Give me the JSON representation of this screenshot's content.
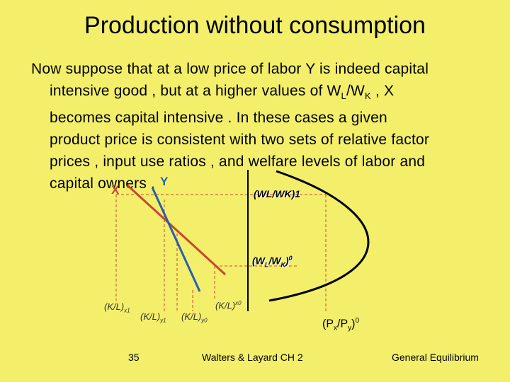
{
  "slide": {
    "title": "Production without consumption",
    "paragraph_lines": [
      "Now suppose that at a low price of labor Y is indeed capital",
      "intensive good , but at a higher values of W",
      "L",
      "/W",
      "K",
      " , X",
      "becomes capital intensive . In these cases a given",
      "product price is consistent with two sets of relative factor",
      "prices , input use ratios , and welfare levels of labor and",
      "capital owners ."
    ]
  },
  "diagram": {
    "label_y": "Y",
    "label_x": "X",
    "label_w1": "(WL/WK)1",
    "label_w0": {
      "open": "(W",
      "sub1": "L",
      "mid": "/W",
      "sub2": "K",
      "close": ")",
      "sup": "0"
    },
    "k_x1": {
      "base": "(K/L)",
      "sub": "x1"
    },
    "k_x0": {
      "base": "(K/L)",
      "sup": "x0"
    },
    "k_y1": {
      "base": "(K/L)",
      "sub": "y1"
    },
    "k_y0": {
      "base": "(K/L)",
      "sub": "y0"
    },
    "price_ratio": {
      "open": "(P",
      "sub1": "x",
      "mid": "/P",
      "sub2": "y",
      "close": ")",
      "sup": "0"
    },
    "colors": {
      "x_line": "#c8472f",
      "y_line": "#2a5db0",
      "curve": "#000000",
      "guide": "#c8472f",
      "axis": "#000000"
    }
  },
  "footer": {
    "page_number": "35",
    "source": "Walters & Layard CH 2",
    "topic": "General Equilibrium"
  }
}
